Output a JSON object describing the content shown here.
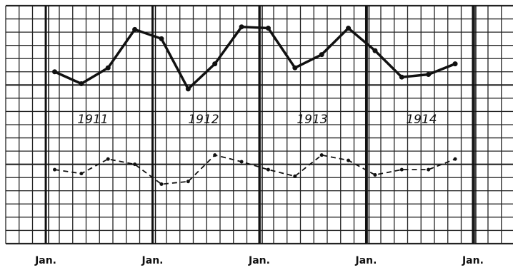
{
  "chart_data": {
    "type": "line",
    "x": [
      1,
      4,
      7,
      10,
      13,
      16,
      19,
      22,
      25,
      28,
      31,
      34,
      37,
      40,
      43,
      46
    ],
    "series": [
      {
        "color": "#111111",
        "dashed": false,
        "values": [
          13.0,
          12.1,
          13.3,
          16.2,
          15.5,
          11.7,
          13.6,
          16.4,
          16.3,
          13.3,
          14.3,
          16.3,
          14.6,
          12.6,
          12.8,
          13.6
        ]
      },
      {
        "color": "#111111",
        "dashed": true,
        "values": [
          5.6,
          5.3,
          6.4,
          6.0,
          4.5,
          4.7,
          6.7,
          6.2,
          5.6,
          5.1,
          6.7,
          6.3,
          5.2,
          5.6,
          5.6,
          6.4
        ]
      }
    ],
    "xlim": [
      -4.5,
      52.5
    ],
    "xticks": [
      {
        "value": 0,
        "label": "Jan."
      },
      {
        "value": 12,
        "label": "Jan."
      },
      {
        "value": 24,
        "label": "Jan."
      },
      {
        "value": 36,
        "label": "Jan."
      },
      {
        "value": 48,
        "label": "Jan."
      }
    ],
    "ylim": [
      0,
      18
    ],
    "grid": true,
    "annotations": [
      "1911",
      "1912",
      "1913",
      "1914"
    ]
  }
}
